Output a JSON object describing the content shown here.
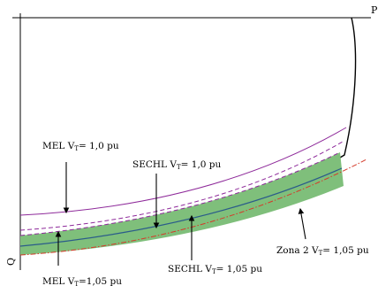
{
  "axes": {
    "x_label": "P",
    "y_label": "Q"
  },
  "colors": {
    "mel": "#8e2a9a",
    "band_fill": "#7fbf7b",
    "band_center": "#2b5c8a",
    "zona": "#d43a2a",
    "axis": "#000000"
  },
  "labels": {
    "mel_10": {
      "prefix": "MEL V",
      "sub": "T",
      "suffix": "= 1,0 pu"
    },
    "sechl_10": {
      "prefix": "SECHL V",
      "sub": "T",
      "suffix": "= 1,0 pu"
    },
    "mel_105": {
      "prefix": "MEL V",
      "sub": "T",
      "suffix": "=1,05 pu"
    },
    "sechl_105": {
      "prefix": "SECHL V",
      "sub": "T",
      "suffix": "= 1,05 pu"
    },
    "zona2": {
      "prefix": "Zona 2 V",
      "sub": "T",
      "suffix": "= 1,05 pu"
    }
  }
}
